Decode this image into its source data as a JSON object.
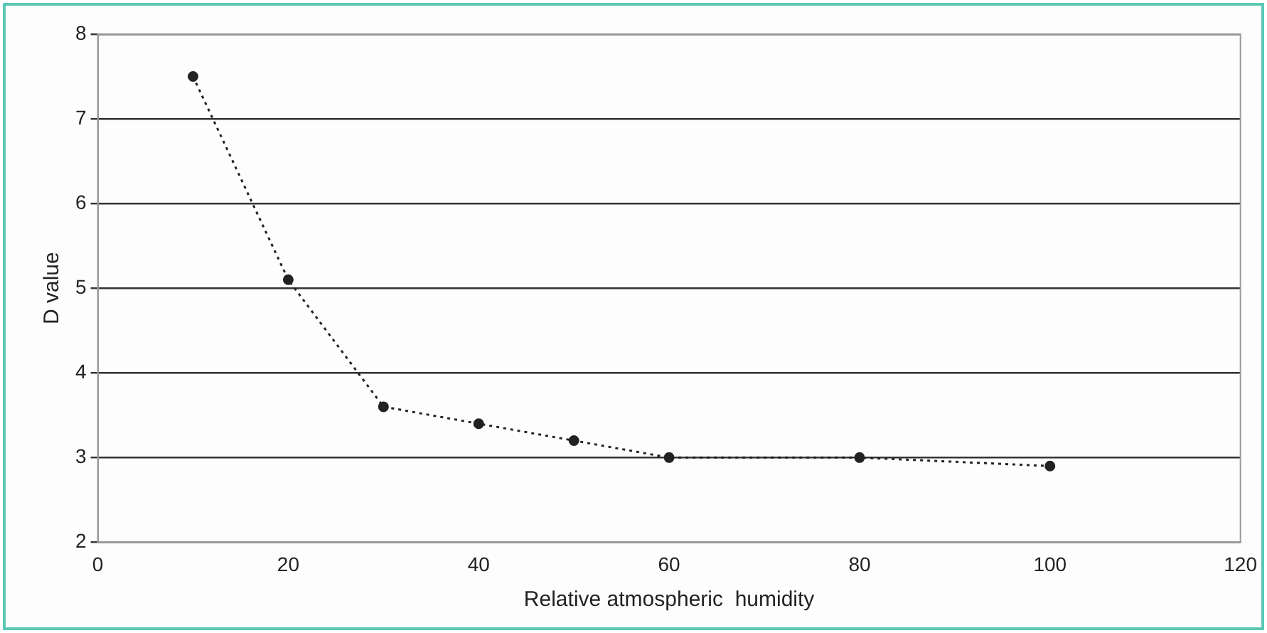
{
  "chart_data": {
    "type": "line",
    "xlabel": "Relative atmospheric  humidity",
    "ylabel": "D value",
    "x": [
      10,
      20,
      30,
      40,
      50,
      60,
      80,
      100
    ],
    "series": [
      {
        "color": "#222222",
        "values": [
          7.5,
          5.1,
          3.6,
          3.4,
          3.2,
          3.0,
          3.0,
          2.9
        ]
      }
    ],
    "xlim": [
      0,
      120
    ],
    "xticks": [
      0,
      20,
      40,
      60,
      80,
      100,
      120
    ],
    "ylim": [
      2,
      8
    ],
    "yticks": [
      2,
      3,
      4,
      5,
      6,
      7,
      8
    ],
    "grid": "y",
    "legend": false,
    "marker": "circle",
    "line_style": "dotted"
  }
}
